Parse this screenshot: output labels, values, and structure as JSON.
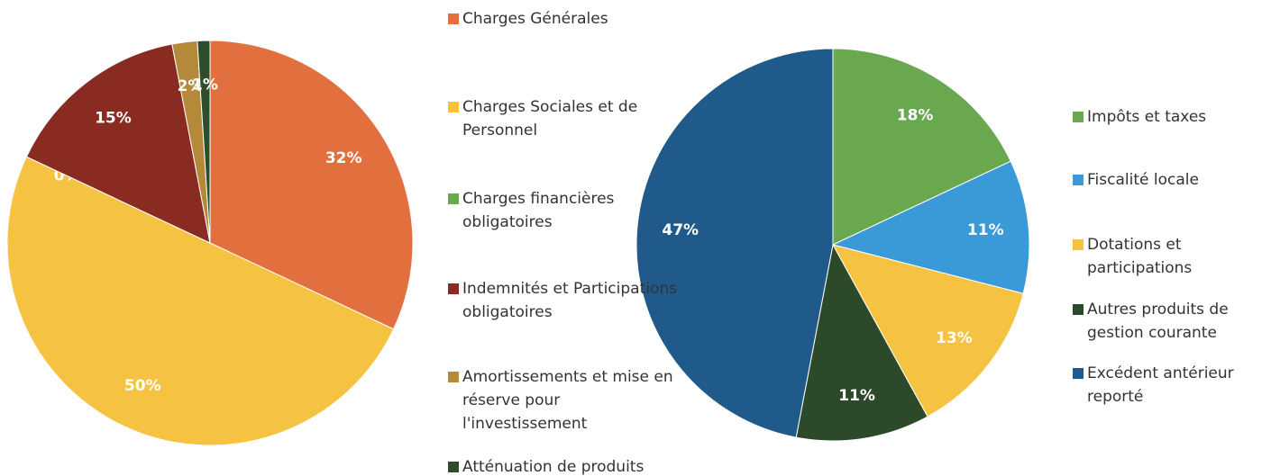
{
  "chart_data": [
    {
      "type": "pie",
      "categories": [
        "Charges Générales",
        "Charges Sociales et de Personnel",
        "Charges financières obligatoires",
        "Indemnités et Participations obligatoires",
        "Amortissements et mise en réserve pour l'investissement",
        "Atténuation de produits"
      ],
      "values": [
        32,
        50,
        0,
        15,
        2,
        1
      ],
      "value_labels": [
        "32%",
        "50%",
        "0%",
        "15%",
        "2%",
        "1%"
      ],
      "colors": [
        "#e2703f",
        "#f5c242",
        "#6aa84f",
        "#8a2b22",
        "#b5893a",
        "#2e4d2a"
      ]
    },
    {
      "type": "pie",
      "categories": [
        "Impôts et taxes",
        "Fiscalité locale",
        "Dotations et participations",
        "Autres produits de gestion courante",
        "Excédent antérieur reporté"
      ],
      "values": [
        18,
        11,
        13,
        11,
        47
      ],
      "value_labels": [
        "18%",
        "11%",
        "13%",
        "11%",
        "47%"
      ],
      "colors": [
        "#6aa84f",
        "#3a9ad8",
        "#f5c242",
        "#2c4a2a",
        "#1f5a8a"
      ]
    }
  ]
}
